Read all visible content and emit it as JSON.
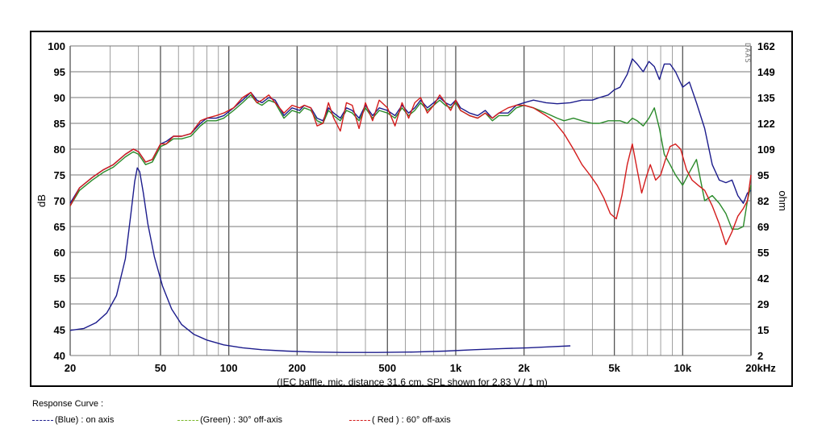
{
  "chart_data": {
    "type": "line",
    "xscale": "log",
    "xlim": [
      20,
      20000
    ],
    "x_ticks": [
      20,
      50,
      100,
      200,
      500,
      1000,
      2000,
      5000,
      10000,
      20000
    ],
    "x_tick_labels": [
      "20",
      "50",
      "100",
      "200",
      "500",
      "1k",
      "2k",
      "5k",
      "10k",
      "20kHz"
    ],
    "xlabel": "(IEC baffle, mic. distance 31.6 cm, SPL shown for 2.83 V / 1 m)",
    "ylabel": "dB",
    "ylim": [
      40,
      100
    ],
    "y_ticks": [
      100,
      95,
      90,
      85,
      80,
      75,
      70,
      65,
      60,
      55,
      50,
      45,
      40
    ],
    "y2label": "ohm",
    "y2lim": [
      2,
      162
    ],
    "y2_ticks": [
      162,
      149,
      135,
      122,
      109,
      95,
      82,
      69,
      55,
      42,
      29,
      15,
      2
    ],
    "grid": true,
    "watermark": "DAAS",
    "series": [
      {
        "name": "(Blue) : on axis",
        "color": "#1c1c8c",
        "x": [
          20,
          22,
          25,
          28,
          31,
          35,
          38,
          40,
          43,
          46,
          50,
          53,
          57,
          62,
          68,
          75,
          80,
          88,
          95,
          105,
          115,
          125,
          133,
          140,
          150,
          160,
          175,
          190,
          205,
          215,
          230,
          245,
          260,
          275,
          290,
          310,
          330,
          350,
          375,
          400,
          430,
          460,
          500,
          540,
          580,
          620,
          660,
          700,
          750,
          800,
          850,
          900,
          950,
          1000,
          1050,
          1100,
          1150,
          1250,
          1350,
          1450,
          1550,
          1700,
          1850,
          2000,
          2200,
          2500,
          2800,
          3200,
          3600,
          4000,
          4300,
          4700,
          5000,
          5300,
          5700,
          6000,
          6300,
          6700,
          7100,
          7500,
          7900,
          8300,
          8800,
          9300,
          10000,
          10700,
          11500,
          12500,
          13500,
          14500,
          15500,
          16500,
          17500,
          18500,
          19300,
          20000
        ],
        "y": [
          69.5,
          72.5,
          74.5,
          76.0,
          77.0,
          79.0,
          80.0,
          79.5,
          77.5,
          78.0,
          81.0,
          81.5,
          82.5,
          82.5,
          83.0,
          85.0,
          86.0,
          86.0,
          86.5,
          88.0,
          89.5,
          91.0,
          89.5,
          89.0,
          90.0,
          89.5,
          86.5,
          88.0,
          87.5,
          88.5,
          88.0,
          86.0,
          85.5,
          88.0,
          87.0,
          86.0,
          88.0,
          87.5,
          86.0,
          88.5,
          86.5,
          88.0,
          87.5,
          86.5,
          88.5,
          87.0,
          88.0,
          89.5,
          88.0,
          89.0,
          90.0,
          89.0,
          88.5,
          89.5,
          88.0,
          87.5,
          87.0,
          86.5,
          87.5,
          86.0,
          87.0,
          87.0,
          88.5,
          89.0,
          89.5,
          89.0,
          88.8,
          89.0,
          89.5,
          89.5,
          90.0,
          90.5,
          91.5,
          92.0,
          94.5,
          97.5,
          96.5,
          95.0,
          97.0,
          96.0,
          93.5,
          96.5,
          96.5,
          95.0,
          92.0,
          93.0,
          89.0,
          84.0,
          77.0,
          74.0,
          73.5,
          74.0,
          71.0,
          69.5,
          71.5,
          72.0
        ]
      },
      {
        "name": "(Green) : 30° off-axis",
        "color": "#2a8a2a",
        "x": [
          20,
          22,
          25,
          28,
          31,
          35,
          38,
          40,
          43,
          46,
          50,
          53,
          57,
          62,
          68,
          75,
          80,
          88,
          95,
          105,
          115,
          125,
          133,
          140,
          150,
          160,
          175,
          190,
          205,
          215,
          230,
          245,
          260,
          275,
          290,
          310,
          330,
          350,
          375,
          400,
          430,
          460,
          500,
          540,
          580,
          620,
          660,
          700,
          750,
          800,
          850,
          900,
          950,
          1000,
          1050,
          1100,
          1150,
          1250,
          1350,
          1450,
          1550,
          1700,
          1850,
          2000,
          2200,
          2500,
          2800,
          3000,
          3300,
          3600,
          4000,
          4300,
          4700,
          5000,
          5300,
          5700,
          6000,
          6300,
          6700,
          7100,
          7500,
          7900,
          8300,
          8800,
          9300,
          10000,
          10700,
          11500,
          12500,
          13500,
          14500,
          15500,
          16500,
          17500,
          18500,
          19300,
          20000
        ],
        "y": [
          69.0,
          72.0,
          74.0,
          75.5,
          76.5,
          78.5,
          79.5,
          79.0,
          77.0,
          77.5,
          80.5,
          81.0,
          82.0,
          82.0,
          82.5,
          84.5,
          85.5,
          85.5,
          86.0,
          87.5,
          89.0,
          90.5,
          89.0,
          88.5,
          89.5,
          89.0,
          86.0,
          87.5,
          87.0,
          88.0,
          87.5,
          85.5,
          85.0,
          87.5,
          86.5,
          85.5,
          87.5,
          87.0,
          85.5,
          88.0,
          86.0,
          87.5,
          87.0,
          86.0,
          88.0,
          86.5,
          87.5,
          89.0,
          87.5,
          88.5,
          89.5,
          88.5,
          88.0,
          89.0,
          87.5,
          87.0,
          86.5,
          86.0,
          87.0,
          85.5,
          86.5,
          86.5,
          88.0,
          88.5,
          88.0,
          87.0,
          86.0,
          85.5,
          86.0,
          85.5,
          85.0,
          85.0,
          85.5,
          85.5,
          85.5,
          85.0,
          86.0,
          85.5,
          84.5,
          86.0,
          88.0,
          84.0,
          79.0,
          77.0,
          75.0,
          73.0,
          75.5,
          78.0,
          70.0,
          71.0,
          69.5,
          67.5,
          64.5,
          64.5,
          65.0,
          70.0,
          73.0
        ]
      },
      {
        "name": "( Red ) : 60° off-axis",
        "color": "#d41c1c",
        "x": [
          20,
          22,
          25,
          28,
          31,
          35,
          38,
          40,
          43,
          46,
          50,
          53,
          57,
          62,
          68,
          75,
          80,
          88,
          95,
          105,
          115,
          125,
          133,
          140,
          150,
          160,
          175,
          190,
          205,
          215,
          230,
          245,
          260,
          275,
          290,
          310,
          330,
          350,
          375,
          400,
          430,
          460,
          500,
          540,
          580,
          620,
          660,
          700,
          750,
          800,
          850,
          900,
          950,
          1000,
          1050,
          1100,
          1150,
          1250,
          1350,
          1450,
          1550,
          1700,
          1850,
          2000,
          2200,
          2500,
          2700,
          3000,
          3300,
          3600,
          3900,
          4200,
          4500,
          4800,
          5100,
          5400,
          5700,
          6000,
          6300,
          6600,
          6900,
          7200,
          7600,
          8000,
          8400,
          8800,
          9300,
          9800,
          10400,
          11000,
          11700,
          12500,
          13500,
          14500,
          15500,
          16500,
          17500,
          18500,
          19300,
          20000
        ],
        "y": [
          69.0,
          72.5,
          74.5,
          76.0,
          77.0,
          79.0,
          80.0,
          79.5,
          77.5,
          78.0,
          81.0,
          81.0,
          82.5,
          82.5,
          83.0,
          85.5,
          86.0,
          86.5,
          87.0,
          88.0,
          90.0,
          91.0,
          89.0,
          89.5,
          90.5,
          89.0,
          87.0,
          88.5,
          88.0,
          88.5,
          88.0,
          84.5,
          85.0,
          89.0,
          86.0,
          83.5,
          89.0,
          88.5,
          84.0,
          89.0,
          85.5,
          89.5,
          88.0,
          84.5,
          89.0,
          86.0,
          89.0,
          90.0,
          87.0,
          88.5,
          90.5,
          89.0,
          87.5,
          89.5,
          87.5,
          87.0,
          86.5,
          86.0,
          87.0,
          86.0,
          87.0,
          88.0,
          88.5,
          88.5,
          88.0,
          86.5,
          85.5,
          83.0,
          80.0,
          77.0,
          75.0,
          73.0,
          70.5,
          67.5,
          66.5,
          71.0,
          77.0,
          81.0,
          76.0,
          71.5,
          74.5,
          77.0,
          74.0,
          75.0,
          78.0,
          80.5,
          81.0,
          80.0,
          76.0,
          74.0,
          73.0,
          72.0,
          69.0,
          65.5,
          61.5,
          64.0,
          67.0,
          68.5,
          70.0,
          75.0
        ]
      },
      {
        "name": "Impedance",
        "axis": "right",
        "color": "#1c1c8c",
        "x": [
          20,
          23,
          26,
          29,
          32,
          35,
          37,
          38.5,
          39.5,
          40.5,
          42,
          44,
          47,
          51,
          56,
          62,
          70,
          80,
          95,
          115,
          140,
          180,
          240,
          320,
          450,
          650,
          900,
          1200,
          1600,
          2100,
          2600,
          3200
        ],
        "y": [
          15,
          16,
          19,
          24,
          33,
          52,
          75,
          92,
          99,
          97,
          86,
          70,
          53,
          38,
          26,
          18,
          13,
          10,
          7.5,
          6,
          5,
          4.3,
          3.8,
          3.6,
          3.6,
          3.8,
          4.3,
          5.0,
          5.6,
          6.0,
          6.5,
          7.0
        ]
      }
    ]
  },
  "legend": {
    "title": "Response Curve :",
    "items": [
      {
        "label": "(Blue)  : on axis",
        "color": "#1c1c8c"
      },
      {
        "label": "(Green) : 30° off-axis",
        "color": "#7ab82a"
      },
      {
        "label": "( Red ) : 60° off-axis",
        "color": "#d41c1c"
      }
    ]
  }
}
